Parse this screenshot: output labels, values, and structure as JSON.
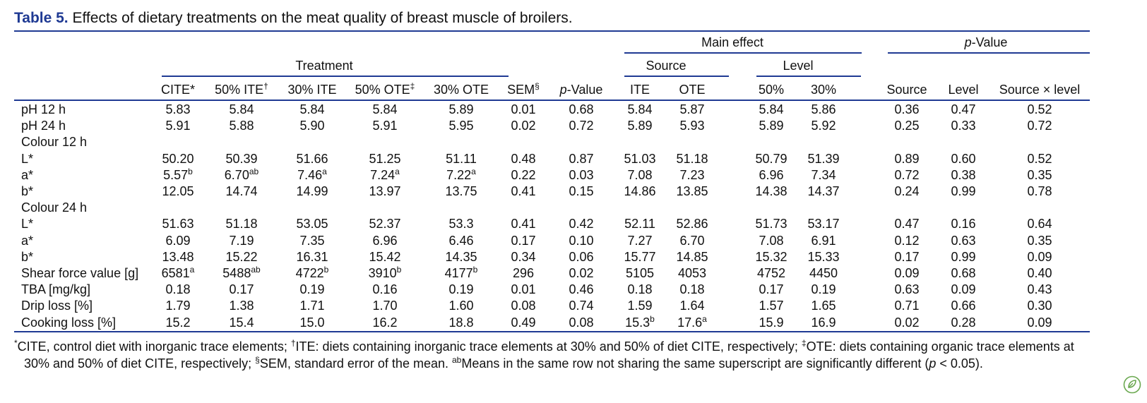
{
  "caption": {
    "label": "Table 5.",
    "text": " Effects of dietary treatments on the meat quality of breast muscle of broilers."
  },
  "groups": {
    "main_effect": "Main effect",
    "pvalue_p": "p",
    "pvalue_rest": "-Value",
    "treatment": "Treatment",
    "source": "Source",
    "level": "Level"
  },
  "headers": {
    "cite": "CITE*",
    "ite50": "50% ITE",
    "ite50_sup": "†",
    "ite30": "30% ITE",
    "ote50": "50% OTE",
    "ote50_sup": "‡",
    "ote30": "30% OTE",
    "sem": "SEM",
    "sem_sup": "§",
    "p_p": "p",
    "p_rest": "-Value",
    "ite": "ITE",
    "ote": "OTE",
    "lvl50": "50%",
    "lvl30": "30%",
    "psource": "Source",
    "plevel": "Level",
    "pinter": "Source × level"
  },
  "rows": [
    {
      "label": "pH 12 h",
      "cells": [
        "5.83",
        "5.84",
        "5.84",
        "5.84",
        "5.89",
        "0.01",
        "0.68",
        "5.84",
        "5.87",
        "5.84",
        "5.86",
        "0.36",
        "0.47",
        "0.52"
      ],
      "sups": [
        "",
        "",
        "",
        "",
        "",
        "",
        "",
        "",
        "",
        "",
        "",
        "",
        "",
        ""
      ]
    },
    {
      "label": "pH 24 h",
      "cells": [
        "5.91",
        "5.88",
        "5.90",
        "5.91",
        "5.95",
        "0.02",
        "0.72",
        "5.89",
        "5.93",
        "5.89",
        "5.92",
        "0.25",
        "0.33",
        "0.72"
      ],
      "sups": [
        "",
        "",
        "",
        "",
        "",
        "",
        "",
        "",
        "",
        "",
        "",
        "",
        "",
        ""
      ]
    },
    {
      "label": "Colour 12 h",
      "cells": [],
      "sups": []
    },
    {
      "label": "L*",
      "cells": [
        "50.20",
        "50.39",
        "51.66",
        "51.25",
        "51.11",
        "0.48",
        "0.87",
        "51.03",
        "51.18",
        "50.79",
        "51.39",
        "0.89",
        "0.60",
        "0.52"
      ],
      "sups": [
        "",
        "",
        "",
        "",
        "",
        "",
        "",
        "",
        "",
        "",
        "",
        "",
        "",
        ""
      ]
    },
    {
      "label": "a*",
      "cells": [
        "5.57",
        "6.70",
        "7.46",
        "7.24",
        "7.22",
        "0.22",
        "0.03",
        "7.08",
        "7.23",
        "6.96",
        "7.34",
        "0.72",
        "0.38",
        "0.35"
      ],
      "sups": [
        "b",
        "ab",
        "a",
        "a",
        "a",
        "",
        "",
        "",
        "",
        "",
        "",
        "",
        "",
        ""
      ]
    },
    {
      "label": "b*",
      "cells": [
        "12.05",
        "14.74",
        "14.99",
        "13.97",
        "13.75",
        "0.41",
        "0.15",
        "14.86",
        "13.85",
        "14.38",
        "14.37",
        "0.24",
        "0.99",
        "0.78"
      ],
      "sups": [
        "",
        "",
        "",
        "",
        "",
        "",
        "",
        "",
        "",
        "",
        "",
        "",
        "",
        ""
      ]
    },
    {
      "label": "Colour 24 h",
      "cells": [],
      "sups": []
    },
    {
      "label": "L*",
      "cells": [
        "51.63",
        "51.18",
        "53.05",
        "52.37",
        "53.3",
        "0.41",
        "0.42",
        "52.11",
        "52.86",
        "51.73",
        "53.17",
        "0.47",
        "0.16",
        "0.64"
      ],
      "sups": [
        "",
        "",
        "",
        "",
        "",
        "",
        "",
        "",
        "",
        "",
        "",
        "",
        "",
        ""
      ]
    },
    {
      "label": "a*",
      "cells": [
        "6.09",
        "7.19",
        "7.35",
        "6.96",
        "6.46",
        "0.17",
        "0.10",
        "7.27",
        "6.70",
        "7.08",
        "6.91",
        "0.12",
        "0.63",
        "0.35"
      ],
      "sups": [
        "",
        "",
        "",
        "",
        "",
        "",
        "",
        "",
        "",
        "",
        "",
        "",
        "",
        ""
      ]
    },
    {
      "label": "b*",
      "cells": [
        "13.48",
        "15.22",
        "16.31",
        "15.42",
        "14.35",
        "0.34",
        "0.06",
        "15.77",
        "14.85",
        "15.32",
        "15.33",
        "0.17",
        "0.99",
        "0.09"
      ],
      "sups": [
        "",
        "",
        "",
        "",
        "",
        "",
        "",
        "",
        "",
        "",
        "",
        "",
        "",
        ""
      ]
    },
    {
      "label": "Shear force value [g]",
      "cells": [
        "6581",
        "5488",
        "4722",
        "3910",
        "4177",
        "296",
        "0.02",
        "5105",
        "4053",
        "4752",
        "4450",
        "0.09",
        "0.68",
        "0.40"
      ],
      "sups": [
        "a",
        "ab",
        "b",
        "b",
        "b",
        "",
        "",
        "",
        "",
        "",
        "",
        "",
        "",
        ""
      ]
    },
    {
      "label": "TBA [mg/kg]",
      "cells": [
        "0.18",
        "0.17",
        "0.19",
        "0.16",
        "0.19",
        "0.01",
        "0.46",
        "0.18",
        "0.18",
        "0.17",
        "0.19",
        "0.63",
        "0.09",
        "0.43"
      ],
      "sups": [
        "",
        "",
        "",
        "",
        "",
        "",
        "",
        "",
        "",
        "",
        "",
        "",
        "",
        ""
      ]
    },
    {
      "label": "Drip loss [%]",
      "cells": [
        "1.79",
        "1.38",
        "1.71",
        "1.70",
        "1.60",
        "0.08",
        "0.74",
        "1.59",
        "1.64",
        "1.57",
        "1.65",
        "0.71",
        "0.66",
        "0.30"
      ],
      "sups": [
        "",
        "",
        "",
        "",
        "",
        "",
        "",
        "",
        "",
        "",
        "",
        "",
        "",
        ""
      ]
    },
    {
      "label": "Cooking loss [%]",
      "cells": [
        "15.2",
        "15.4",
        "15.0",
        "16.2",
        "18.8",
        "0.49",
        "0.08",
        "15.3",
        "17.6",
        "15.9",
        "16.9",
        "0.02",
        "0.28",
        "0.09"
      ],
      "sups": [
        "",
        "",
        "",
        "",
        "",
        "",
        "",
        "b",
        "a",
        "",
        "",
        "",
        "",
        ""
      ]
    }
  ],
  "footnote": {
    "s1_sup": "*",
    "s1": "CITE, control diet with inorganic trace elements; ",
    "s2_sup": "†",
    "s2": "ITE: diets containing inorganic trace elements at 30% and 50% of diet CITE, respectively; ",
    "s3_sup": "‡",
    "s3": "OTE: diets containing organic trace elements at",
    "s4": "30% and 50% of diet CITE, respectively; ",
    "s5_sup": "§",
    "s5": "SEM, standard error of the mean. ",
    "s6_sup": "ab",
    "s6": "Means in the same row not sharing the same superscript are significantly different (",
    "s6_p": "p",
    "s6_end": " < 0.05)."
  },
  "icon": {
    "name": "leaf-icon",
    "color": "#6aa84f"
  }
}
